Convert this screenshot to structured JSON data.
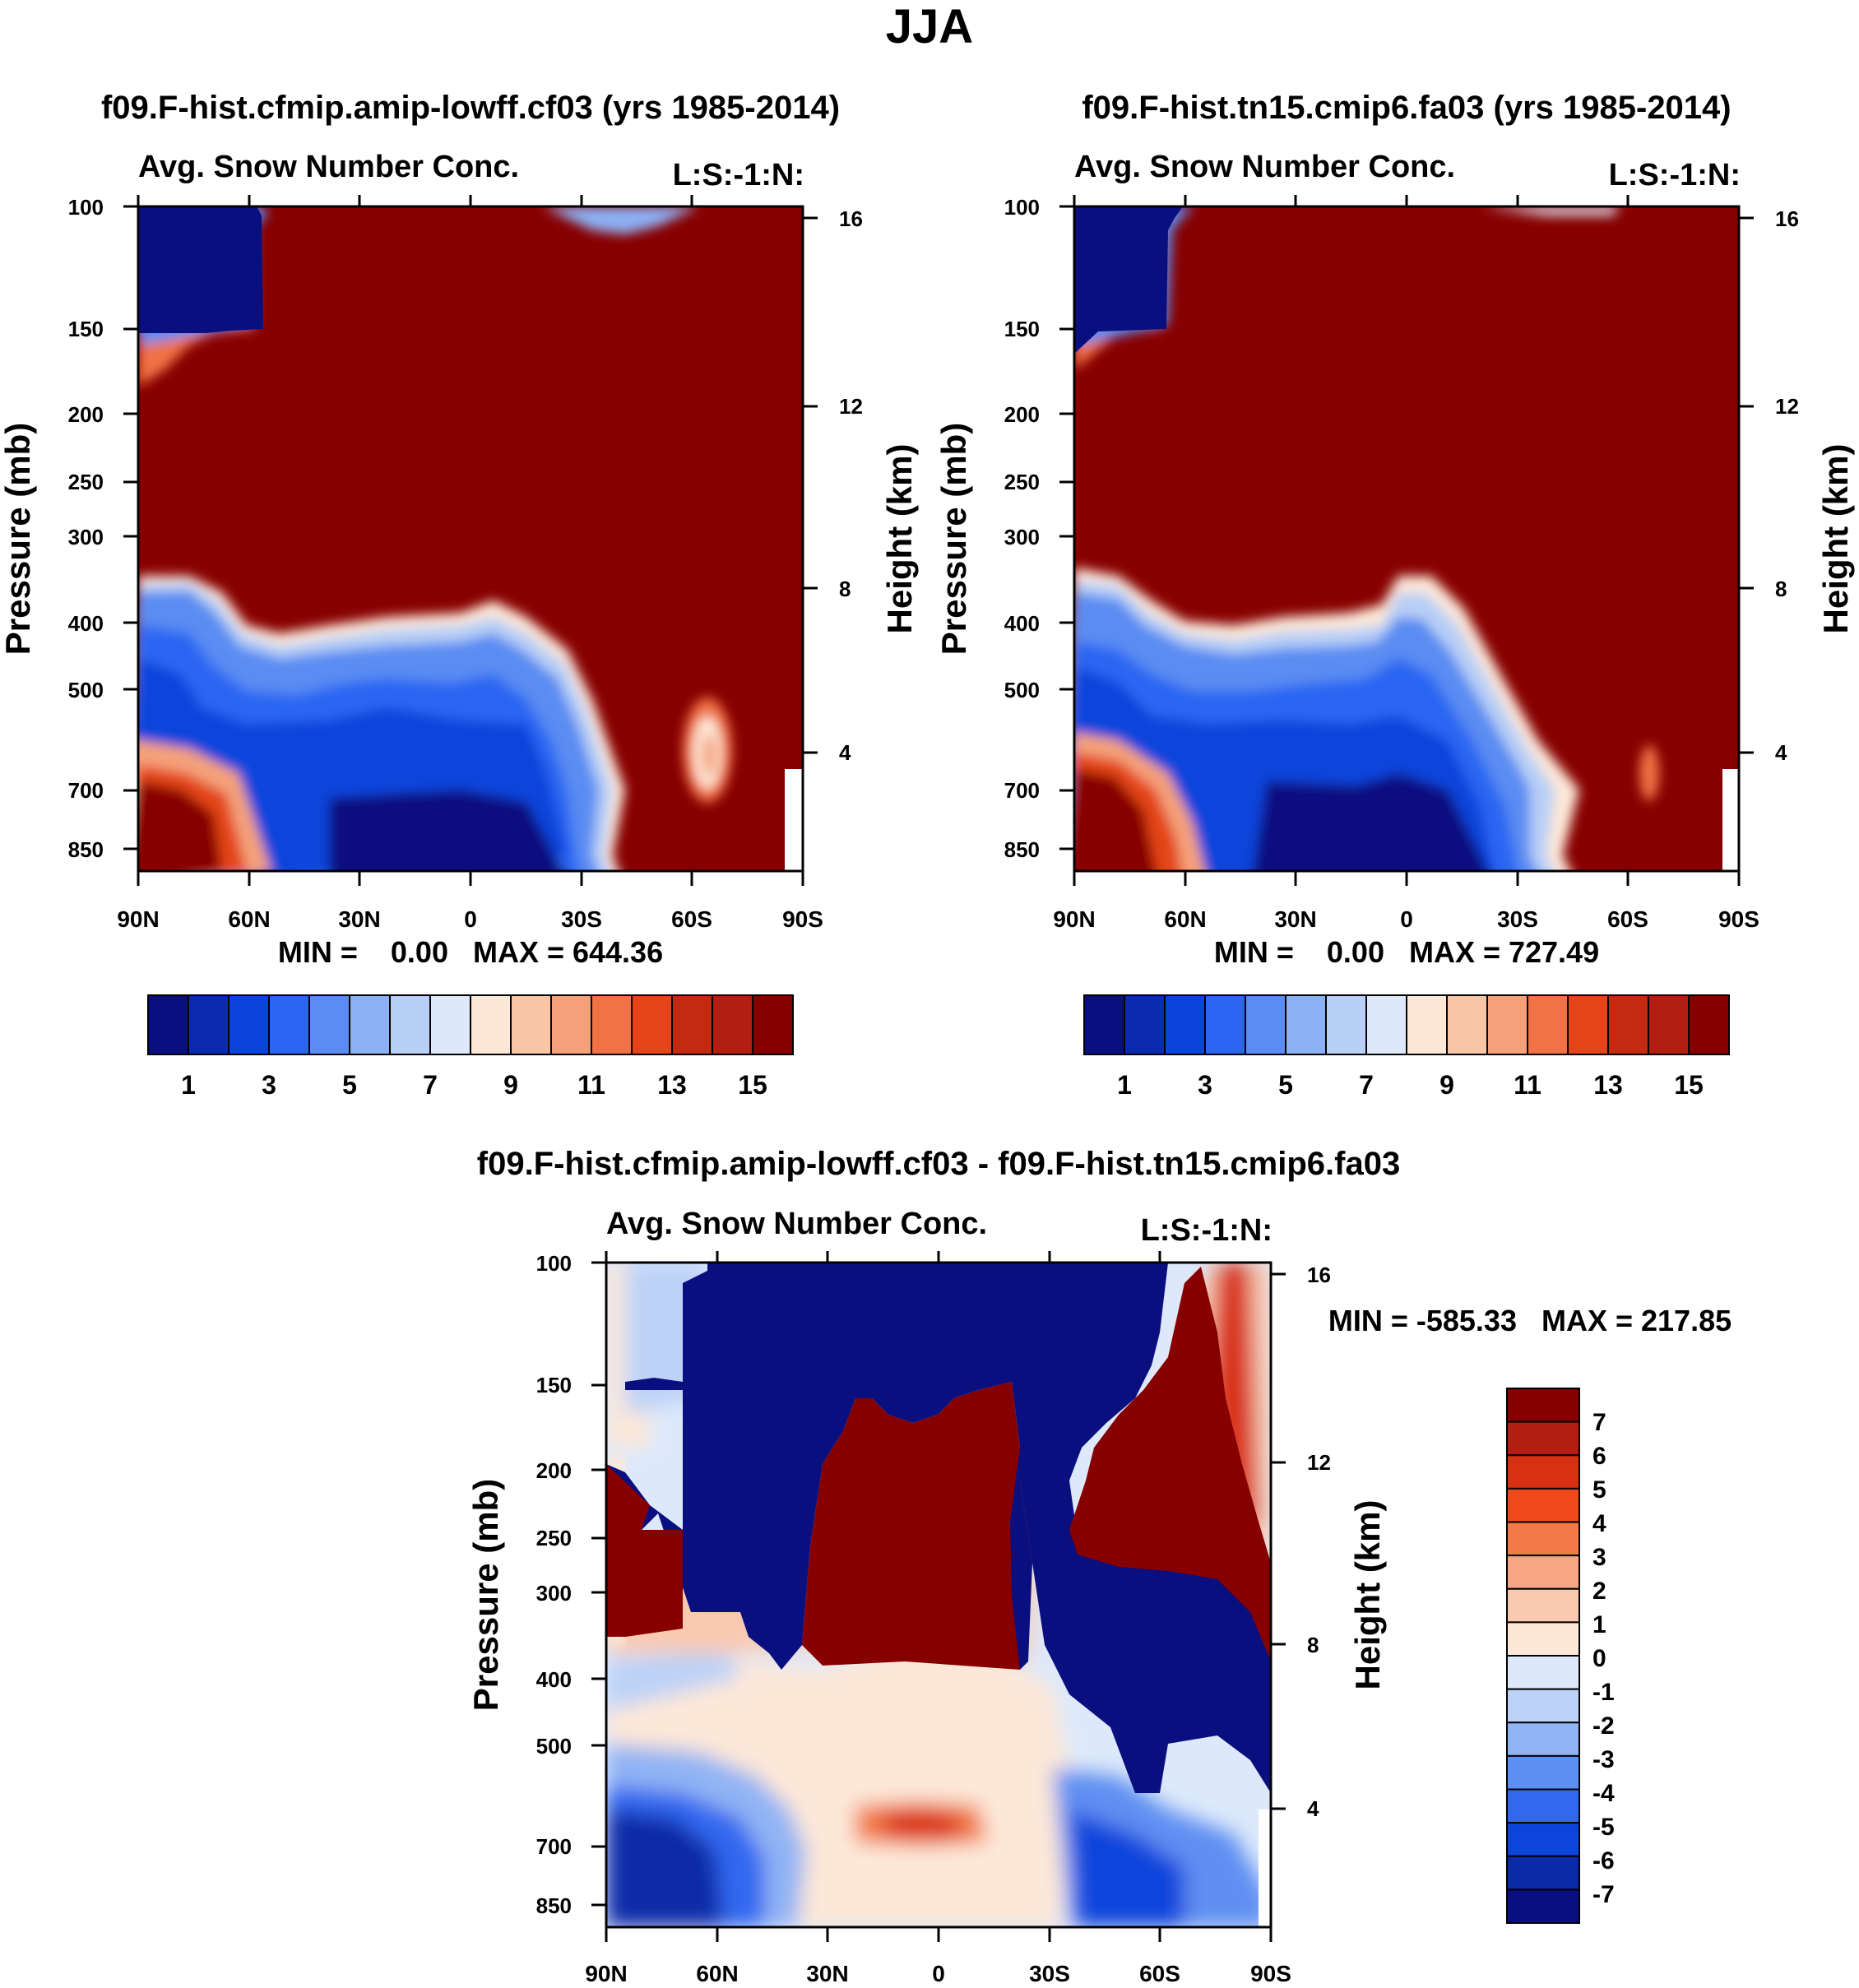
{
  "page_title": "JJA",
  "chart_data": [
    {
      "type": "heatmap",
      "title": "f09.F-hist.cfmip.amip-lowff.cf03 (yrs 1985-2014)",
      "subtitle_left": "Avg. Snow Number Conc.",
      "subtitle_right": "L:S:-1:N:",
      "xlabel": "",
      "ylabel": "Pressure (mb)",
      "ylabel_right": "Height (km)",
      "x_ticks": [
        "90N",
        "60N",
        "30N",
        "0",
        "30S",
        "60S",
        "90S"
      ],
      "y_ticks": [
        "100",
        "150",
        "200",
        "250",
        "300",
        "400",
        "500",
        "700",
        "850"
      ],
      "y_ticks_right": [
        "16",
        "12",
        "8",
        "4"
      ],
      "min_max": "MIN =    0.00   MAX = 644.36",
      "colorbar_labels": [
        "1",
        "3",
        "5",
        "7",
        "9",
        "11",
        "13",
        "15"
      ],
      "colorbar_colors": [
        "#0a0f80",
        "#0a2bb0",
        "#0b44dc",
        "#2a66f2",
        "#5a8cf2",
        "#8cb0f4",
        "#b8cff6",
        "#dde9fb",
        "#fde8d8",
        "#f8c5a6",
        "#f4a079",
        "#f07245",
        "#e44418",
        "#c42a10",
        "#b31d12",
        "#870000"
      ]
    },
    {
      "type": "heatmap",
      "title": "f09.F-hist.tn15.cmip6.fa03 (yrs 1985-2014)",
      "subtitle_left": "Avg. Snow Number Conc.",
      "subtitle_right": "L:S:-1:N:",
      "xlabel": "",
      "ylabel": "Pressure (mb)",
      "ylabel_right": "Height (km)",
      "x_ticks": [
        "90N",
        "60N",
        "30N",
        "0",
        "30S",
        "60S",
        "90S"
      ],
      "y_ticks": [
        "100",
        "150",
        "200",
        "250",
        "300",
        "400",
        "500",
        "700",
        "850"
      ],
      "y_ticks_right": [
        "16",
        "12",
        "8",
        "4"
      ],
      "min_max": "MIN =    0.00   MAX = 727.49",
      "colorbar_labels": [
        "1",
        "3",
        "5",
        "7",
        "9",
        "11",
        "13",
        "15"
      ],
      "colorbar_colors": [
        "#0a0f80",
        "#0a2bb0",
        "#0b44dc",
        "#2a66f2",
        "#5a8cf2",
        "#8cb0f4",
        "#b8cff6",
        "#dde9fb",
        "#fde8d8",
        "#f8c5a6",
        "#f4a079",
        "#f07245",
        "#e44418",
        "#c42a10",
        "#b31d12",
        "#870000"
      ]
    },
    {
      "type": "heatmap",
      "title": "f09.F-hist.cfmip.amip-lowff.cf03 - f09.F-hist.tn15.cmip6.fa03",
      "subtitle_left": "Avg. Snow Number Conc.",
      "subtitle_right": "L:S:-1:N:",
      "xlabel": "",
      "ylabel": "Pressure (mb)",
      "ylabel_right": "Height (km)",
      "x_ticks": [
        "90N",
        "60N",
        "30N",
        "0",
        "30S",
        "60S",
        "90S"
      ],
      "y_ticks": [
        "100",
        "150",
        "200",
        "250",
        "300",
        "400",
        "500",
        "700",
        "850"
      ],
      "y_ticks_right": [
        "16",
        "12",
        "8",
        "4"
      ],
      "min_max": "MIN = -585.33   MAX = 217.85",
      "colorbar_labels": [
        "7",
        "6",
        "5",
        "4",
        "3",
        "2",
        "1",
        "0",
        "-1",
        "-2",
        "-3",
        "-4",
        "-5",
        "-6",
        "-7"
      ],
      "colorbar_colors": [
        "#870000",
        "#b31d12",
        "#d83012",
        "#f04a1c",
        "#f27a46",
        "#f6a683",
        "#fac9b0",
        "#fde8d8",
        "#dde9fb",
        "#bcd2f7",
        "#91b3f4",
        "#5e8ff2",
        "#3268f0",
        "#0d45dc",
        "#0a2aa8",
        "#0a0f80"
      ]
    }
  ]
}
